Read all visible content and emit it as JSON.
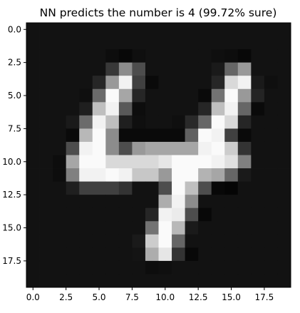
{
  "chart_data": {
    "type": "heatmap",
    "title": "NN predicts the number is 4 (99.72% sure)",
    "colormap": "grayscale",
    "xlim": [
      -0.5,
      19.5
    ],
    "ylim": [
      19.5,
      -0.5
    ],
    "x_ticks": [
      0.0,
      2.5,
      5.0,
      7.5,
      10.0,
      12.5,
      15.0,
      17.5
    ],
    "x_tick_labels": [
      "0.0",
      "2.5",
      "5.0",
      "7.5",
      "10.0",
      "12.5",
      "15.0",
      "17.5"
    ],
    "y_ticks": [
      0.0,
      2.5,
      5.0,
      7.5,
      10.0,
      12.5,
      15.0,
      17.5
    ],
    "y_tick_labels": [
      "0.0",
      "2.5",
      "5.0",
      "7.5",
      "10.0",
      "12.5",
      "15.0",
      "17.5"
    ],
    "grid": false,
    "values": [
      [
        0.07,
        0.07,
        0.07,
        0.07,
        0.07,
        0.07,
        0.07,
        0.07,
        0.07,
        0.07,
        0.07,
        0.07,
        0.07,
        0.07,
        0.07,
        0.07,
        0.07,
        0.07,
        0.07,
        0.07
      ],
      [
        0.07,
        0.07,
        0.07,
        0.07,
        0.07,
        0.07,
        0.07,
        0.07,
        0.07,
        0.07,
        0.07,
        0.07,
        0.07,
        0.07,
        0.07,
        0.07,
        0.07,
        0.07,
        0.07,
        0.07
      ],
      [
        0.07,
        0.07,
        0.07,
        0.07,
        0.07,
        0.07,
        0.05,
        0.03,
        0.06,
        0.07,
        0.07,
        0.07,
        0.07,
        0.07,
        0.06,
        0.05,
        0.03,
        0.07,
        0.07,
        0.07
      ],
      [
        0.07,
        0.07,
        0.07,
        0.07,
        0.07,
        0.07,
        0.22,
        0.55,
        0.3,
        0.07,
        0.07,
        0.07,
        0.07,
        0.07,
        0.1,
        0.4,
        0.6,
        0.07,
        0.07,
        0.07
      ],
      [
        0.07,
        0.07,
        0.07,
        0.07,
        0.07,
        0.15,
        0.6,
        0.95,
        0.25,
        0.04,
        0.07,
        0.07,
        0.07,
        0.07,
        0.15,
        0.85,
        0.95,
        0.1,
        0.06,
        0.07
      ],
      [
        0.07,
        0.07,
        0.07,
        0.07,
        0.06,
        0.42,
        0.98,
        0.65,
        0.15,
        0.07,
        0.07,
        0.07,
        0.07,
        0.04,
        0.45,
        0.98,
        0.6,
        0.14,
        0.07,
        0.07
      ],
      [
        0.07,
        0.07,
        0.07,
        0.07,
        0.12,
        0.75,
        0.95,
        0.35,
        0.05,
        0.07,
        0.07,
        0.07,
        0.07,
        0.15,
        0.75,
        0.95,
        0.4,
        0.04,
        0.07,
        0.07
      ],
      [
        0.07,
        0.07,
        0.07,
        0.1,
        0.42,
        0.95,
        0.75,
        0.12,
        0.06,
        0.07,
        0.07,
        0.06,
        0.16,
        0.4,
        0.98,
        0.85,
        0.15,
        0.07,
        0.07,
        0.07
      ],
      [
        0.07,
        0.07,
        0.07,
        0.04,
        0.72,
        0.98,
        0.55,
        0.04,
        0.04,
        0.04,
        0.04,
        0.04,
        0.38,
        0.98,
        0.95,
        0.25,
        0.04,
        0.07,
        0.07,
        0.07
      ],
      [
        0.07,
        0.07,
        0.07,
        0.3,
        0.95,
        0.98,
        0.55,
        0.3,
        0.6,
        0.65,
        0.65,
        0.65,
        0.65,
        0.95,
        0.98,
        0.8,
        0.2,
        0.07,
        0.07,
        0.07
      ],
      [
        0.07,
        0.07,
        0.05,
        0.65,
        0.98,
        0.98,
        0.85,
        0.85,
        0.85,
        0.85,
        0.9,
        0.98,
        0.98,
        0.98,
        0.95,
        0.88,
        0.5,
        0.07,
        0.07,
        0.07
      ],
      [
        0.07,
        0.07,
        0.05,
        0.5,
        0.95,
        0.95,
        0.98,
        0.95,
        0.78,
        0.78,
        0.6,
        0.98,
        0.98,
        0.7,
        0.65,
        0.4,
        0.1,
        0.07,
        0.07,
        0.07
      ],
      [
        0.07,
        0.07,
        0.07,
        0.12,
        0.25,
        0.25,
        0.25,
        0.2,
        0.07,
        0.07,
        0.3,
        0.98,
        0.75,
        0.3,
        0.03,
        0.02,
        0.07,
        0.07,
        0.07,
        0.07
      ],
      [
        0.07,
        0.07,
        0.07,
        0.07,
        0.07,
        0.07,
        0.07,
        0.07,
        0.07,
        0.07,
        0.68,
        0.95,
        0.55,
        0.07,
        0.07,
        0.07,
        0.07,
        0.07,
        0.07,
        0.07
      ],
      [
        0.07,
        0.07,
        0.07,
        0.07,
        0.07,
        0.07,
        0.07,
        0.07,
        0.07,
        0.15,
        0.95,
        0.92,
        0.3,
        0.03,
        0.07,
        0.07,
        0.07,
        0.07,
        0.07,
        0.07
      ],
      [
        0.07,
        0.07,
        0.07,
        0.07,
        0.07,
        0.07,
        0.07,
        0.07,
        0.07,
        0.45,
        0.98,
        0.72,
        0.1,
        0.07,
        0.07,
        0.07,
        0.07,
        0.07,
        0.07,
        0.07
      ],
      [
        0.07,
        0.07,
        0.07,
        0.07,
        0.07,
        0.07,
        0.07,
        0.07,
        0.1,
        0.8,
        0.98,
        0.4,
        0.07,
        0.07,
        0.07,
        0.07,
        0.07,
        0.07,
        0.07,
        0.07
      ],
      [
        0.07,
        0.07,
        0.07,
        0.07,
        0.07,
        0.07,
        0.07,
        0.07,
        0.08,
        0.68,
        0.9,
        0.2,
        0.03,
        0.07,
        0.07,
        0.07,
        0.07,
        0.07,
        0.07,
        0.07
      ],
      [
        0.07,
        0.07,
        0.07,
        0.07,
        0.07,
        0.07,
        0.07,
        0.07,
        0.07,
        0.05,
        0.06,
        0.07,
        0.07,
        0.07,
        0.07,
        0.07,
        0.07,
        0.07,
        0.07,
        0.07
      ],
      [
        0.07,
        0.07,
        0.07,
        0.07,
        0.07,
        0.07,
        0.07,
        0.07,
        0.07,
        0.07,
        0.07,
        0.07,
        0.07,
        0.07,
        0.07,
        0.07,
        0.07,
        0.07,
        0.07,
        0.07
      ]
    ]
  }
}
